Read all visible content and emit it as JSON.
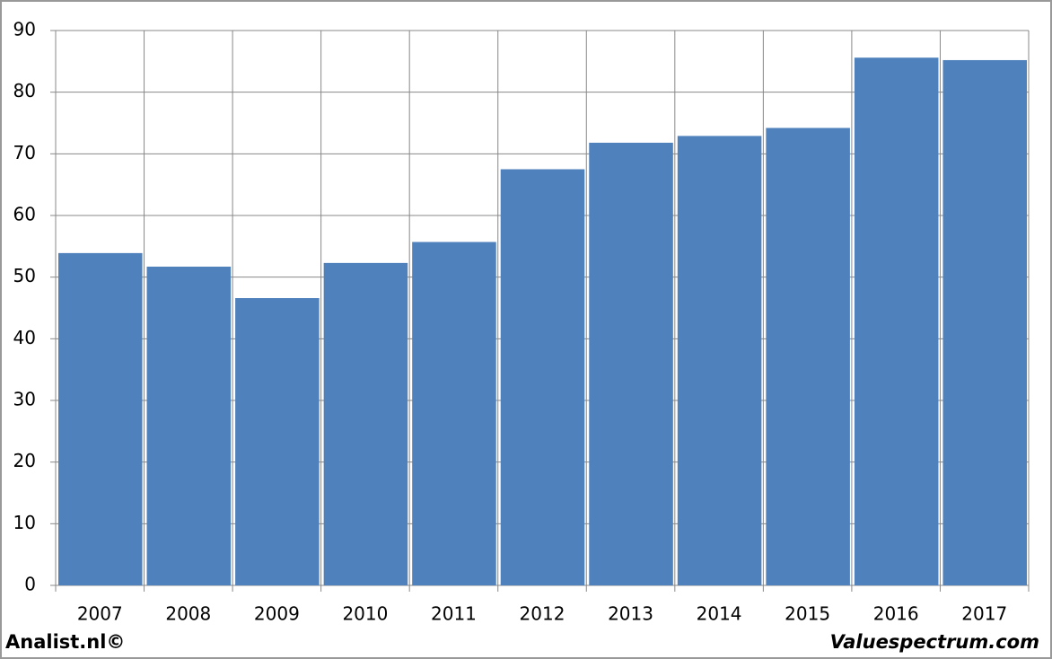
{
  "chart_data": {
    "type": "bar",
    "categories": [
      "2007",
      "2008",
      "2009",
      "2010",
      "2011",
      "2012",
      "2013",
      "2014",
      "2015",
      "2016",
      "2017"
    ],
    "values": [
      53.9,
      51.7,
      46.6,
      52.3,
      55.7,
      67.5,
      71.8,
      72.9,
      74.2,
      85.6,
      85.2
    ],
    "color": "#4f81bd",
    "ylim": [
      0,
      90
    ],
    "yticks": [
      0,
      10,
      20,
      30,
      40,
      50,
      60,
      70,
      80,
      90
    ],
    "grid": true
  },
  "footer": {
    "left": "Analist.nl©",
    "right": "Valuespectrum.com"
  }
}
